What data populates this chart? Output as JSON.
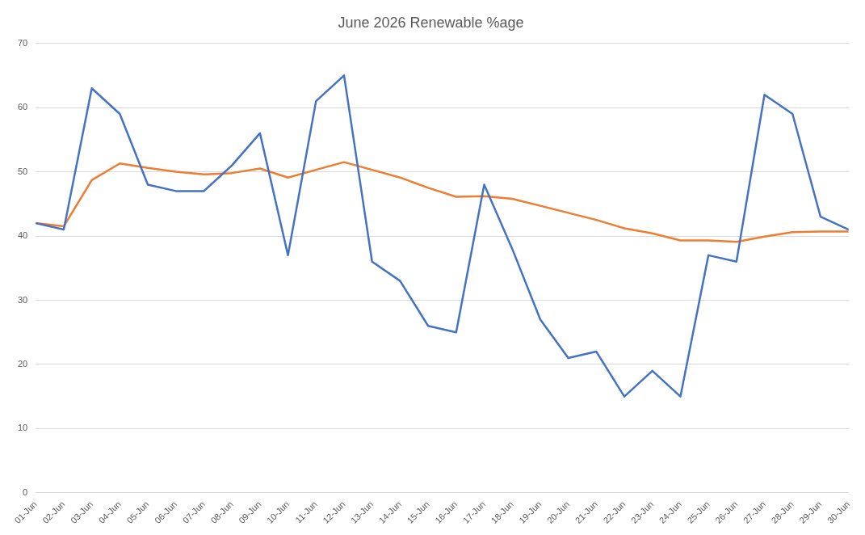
{
  "chart_data": {
    "type": "line",
    "title": "June 2026 Renewable %age",
    "categories": [
      "01-Jun",
      "02-Jun",
      "03-Jun",
      "04-Jun",
      "05-Jun",
      "06-Jun",
      "07-Jun",
      "08-Jun",
      "09-Jun",
      "10-Jun",
      "11-Jun",
      "12-Jun",
      "13-Jun",
      "14-Jun",
      "15-Jun",
      "16-Jun",
      "17-Jun",
      "18-Jun",
      "19-Jun",
      "20-Jun",
      "21-Jun",
      "22-Jun",
      "23-Jun",
      "24-Jun",
      "25-Jun",
      "26-Jun",
      "27-Jun",
      "28-Jun",
      "29-Jun",
      "30-Jun"
    ],
    "series": [
      {
        "color": "#4472c4",
        "values": [
          42,
          41,
          63,
          59,
          48,
          47,
          47,
          51,
          56,
          37,
          61,
          65,
          36,
          33,
          26,
          25,
          48,
          38,
          27,
          21,
          22,
          15,
          19,
          15,
          37,
          36,
          62,
          59,
          43,
          41
        ]
      },
      {
        "color": "#ed7d31",
        "values": [
          42,
          41.5,
          48.7,
          51.3,
          50.6,
          50,
          49.6,
          49.8,
          50.5,
          49.1,
          50.3,
          51.5,
          50.3,
          49.1,
          47.5,
          46.1,
          46.2,
          45.8,
          44.7,
          43.6,
          42.5,
          41.2,
          40.4,
          39.3,
          39.3,
          39.1,
          39.9,
          40.6,
          40.7,
          40.7
        ]
      }
    ],
    "ylim": [
      0,
      70
    ],
    "yticks": [
      0,
      10,
      20,
      30,
      40,
      50,
      60,
      70
    ],
    "grid": "y",
    "legend": false,
    "marker": "none",
    "line_style": "solid"
  }
}
